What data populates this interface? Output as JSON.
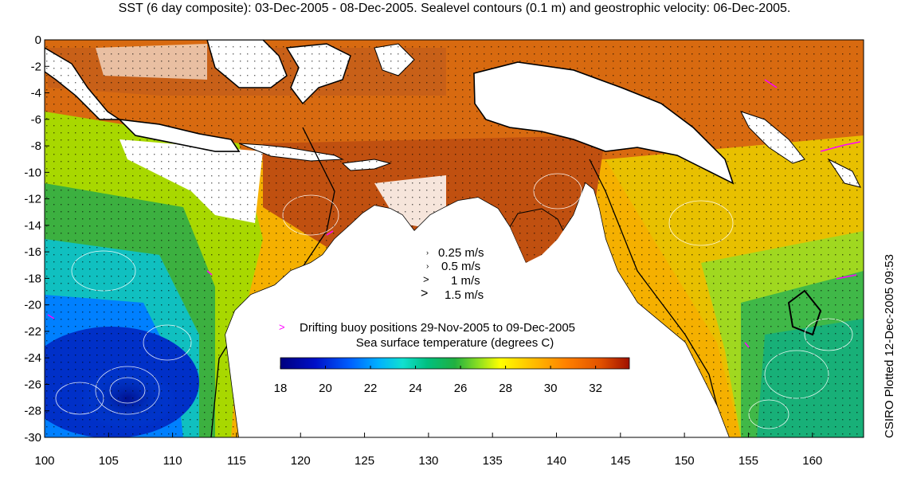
{
  "title": "SST (6 day composite): 03-Dec-2005 - 08-Dec-2005. Sealevel contours (0.1 m) and geostrophic velocity: 06-Dec-2005.",
  "side_note": "CSIRO Plotted 12-Dec-2005 09:53",
  "map": {
    "lon_range": [
      100,
      164
    ],
    "lat_range": [
      -30,
      0
    ],
    "x_ticks": [
      "100",
      "105",
      "110",
      "115",
      "120",
      "125",
      "130",
      "135",
      "140",
      "145",
      "150",
      "155",
      "160"
    ],
    "y_ticks": [
      "0",
      "-2",
      "-4",
      "-6",
      "-8",
      "-10",
      "-12",
      "-14",
      "-16",
      "-18",
      "-20",
      "-22",
      "-24",
      "-26",
      "-28",
      "-30"
    ]
  },
  "velocity_key": {
    "items": [
      "0.25 m/s",
      "0.5 m/s",
      "1 m/s",
      "1.5 m/s"
    ]
  },
  "buoy_legend": {
    "marker": ">",
    "marker_color": "#ff00ff",
    "label": "Drifting buoy positions 29-Nov-2005 to 09-Dec-2005"
  },
  "colorbar": {
    "title": "Sea surface temperature (degrees C)",
    "range": [
      18,
      33.5
    ],
    "labels": [
      "18",
      "20",
      "22",
      "24",
      "26",
      "28",
      "30",
      "32"
    ],
    "colors": [
      "#00007f",
      "#0010c8",
      "#0060ff",
      "#00b0ff",
      "#10e0d0",
      "#00c080",
      "#20b040",
      "#60d020",
      "#c0f000",
      "#ffff00",
      "#ffc000",
      "#ff8000",
      "#e05000",
      "#a01000"
    ]
  }
}
